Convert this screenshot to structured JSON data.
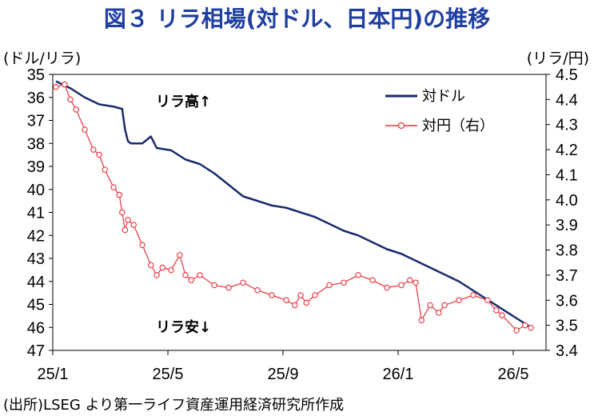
{
  "title": "図３ リラ相場(対ドル、日本円)の推移",
  "left_unit": "(ドル/リラ)",
  "right_unit": "(リラ/円)",
  "source": "(出所)LSEG より第一ライフ資産運用経済研究所作成",
  "annotations": {
    "up": "リラ高↑",
    "down": "リラ安↓"
  },
  "colors": {
    "usd_line": "#1a2a6c",
    "jpy_line": "#e8323c",
    "jpy_marker_fill": "#ffffff"
  },
  "chart_data": {
    "type": "line",
    "x_ticks": [
      "25/1",
      "25/5",
      "25/9",
      "26/1",
      "26/5"
    ],
    "y_left": {
      "label": "(ドル/リラ)",
      "range": [
        35,
        47
      ],
      "inverted": true,
      "ticks": [
        35,
        36,
        37,
        38,
        39,
        40,
        41,
        42,
        43,
        44,
        45,
        46,
        47
      ]
    },
    "y_right": {
      "label": "(リラ/円)",
      "range": [
        3.4,
        4.5
      ],
      "ticks": [
        "4.5",
        "4.4",
        "4.3",
        "4.2",
        "4.1",
        "4.0",
        "3.9",
        "3.8",
        "3.7",
        "3.6",
        "3.5",
        "3.4"
      ]
    },
    "legend": "top-right",
    "series": [
      {
        "name": "対ドル",
        "axis": "left",
        "x": [
          "25/1",
          "25/1.5",
          "25/2",
          "25/2.5",
          "25/3",
          "25/3.3",
          "25/3.4",
          "25/3.5",
          "25/3.6",
          "25/4",
          "25/4.3",
          "25/4.5",
          "25/5",
          "25/5.5",
          "25/6",
          "25/6.5",
          "25/7",
          "25/7.5",
          "25/8",
          "25/8.5",
          "25/9",
          "25/9.5",
          "25/10",
          "25/10.5",
          "25/11",
          "25/11.5",
          "25/12",
          "25/12.5",
          "26/1",
          "26/1.5",
          "26/2",
          "26/2.5",
          "26/3",
          "26/3.5",
          "26/4",
          "26/4.5",
          "26/5",
          "26/5.5"
        ],
        "values": [
          35.3,
          35.6,
          36.0,
          36.3,
          36.4,
          36.5,
          37.4,
          37.9,
          38.0,
          38.0,
          37.7,
          38.2,
          38.3,
          38.7,
          38.9,
          39.3,
          39.8,
          40.3,
          40.5,
          40.7,
          40.8,
          41.0,
          41.2,
          41.5,
          41.8,
          42.0,
          42.3,
          42.6,
          42.8,
          43.1,
          43.4,
          43.7,
          44.0,
          44.4,
          44.8,
          45.2,
          45.6,
          46.0
        ]
      },
      {
        "name": "対円（右）",
        "axis": "right",
        "x": [
          "25/1",
          "25/1.3",
          "25/1.5",
          "25/1.7",
          "25/2",
          "25/2.3",
          "25/2.5",
          "25/2.7",
          "25/3",
          "25/3.2",
          "25/3.3",
          "25/3.4",
          "25/3.5",
          "25/3.7",
          "25/4",
          "25/4.3",
          "25/4.5",
          "25/4.7",
          "25/5",
          "25/5.3",
          "25/5.5",
          "25/5.7",
          "25/6",
          "25/6.5",
          "25/7",
          "25/7.5",
          "25/8",
          "25/8.5",
          "25/9",
          "25/9.3",
          "25/9.5",
          "25/9.7",
          "25/10",
          "25/10.5",
          "25/11",
          "25/11.5",
          "25/12",
          "25/12.5",
          "26/1",
          "26/1.3",
          "26/1.5",
          "26/1.7",
          "26/2",
          "26/2.3",
          "26/2.5",
          "26/3",
          "26/3.5",
          "26/4",
          "26/4.3",
          "26/4.5",
          "26/5",
          "26/5.3",
          "26/5.5"
        ],
        "values": [
          4.45,
          4.46,
          4.4,
          4.36,
          4.28,
          4.2,
          4.18,
          4.12,
          4.05,
          4.02,
          3.95,
          3.88,
          3.92,
          3.9,
          3.82,
          3.74,
          3.7,
          3.73,
          3.72,
          3.78,
          3.7,
          3.68,
          3.7,
          3.66,
          3.65,
          3.67,
          3.64,
          3.62,
          3.6,
          3.58,
          3.62,
          3.59,
          3.62,
          3.66,
          3.67,
          3.7,
          3.68,
          3.65,
          3.66,
          3.68,
          3.67,
          3.52,
          3.58,
          3.55,
          3.58,
          3.6,
          3.62,
          3.6,
          3.56,
          3.54,
          3.48,
          3.5,
          3.49
        ]
      }
    ]
  }
}
